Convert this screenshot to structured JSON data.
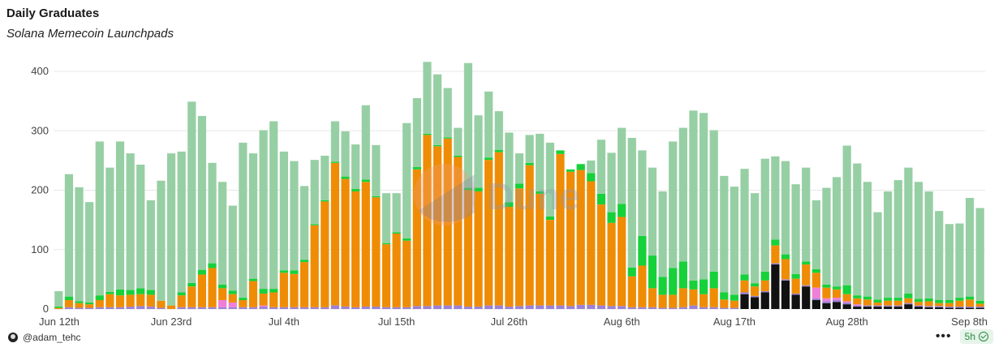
{
  "header": {
    "title": "Daily Graduates",
    "subtitle": "Solana Memecoin Launchpads"
  },
  "footer": {
    "author": "@adam_tehc",
    "more": "•••",
    "refresh": "5h"
  },
  "watermark": "Dune",
  "colors": {
    "total": "#97cfa4",
    "pump": "#ef8c05",
    "moonshot": "#16d13a",
    "purple": "#9b82d6",
    "pink": "#ef7fd7",
    "black": "#111111",
    "grid": "#e8e8e8"
  },
  "chart_data": {
    "type": "bar",
    "title": "Daily Graduates",
    "subtitle": "Solana Memecoin Launchpads",
    "ylim": [
      0,
      420
    ],
    "yticks": [
      0,
      100,
      200,
      300,
      400
    ],
    "xticks": [
      {
        "index": 0,
        "label": "Jun 12th"
      },
      {
        "index": 11,
        "label": "Jun 23rd"
      },
      {
        "index": 22,
        "label": "Jul 4th"
      },
      {
        "index": 33,
        "label": "Jul 15th"
      },
      {
        "index": 44,
        "label": "Jul 26th"
      },
      {
        "index": 55,
        "label": "Aug 6th"
      },
      {
        "index": 66,
        "label": "Aug 17th"
      },
      {
        "index": 77,
        "label": "Aug 28th"
      },
      {
        "index": 88,
        "label": "Sep 8th"
      }
    ],
    "totals": [
      30,
      227,
      205,
      180,
      282,
      238,
      282,
      262,
      243,
      183,
      216,
      262,
      265,
      349,
      325,
      246,
      214,
      174,
      280,
      262,
      301,
      316,
      265,
      249,
      207,
      251,
      258,
      316,
      299,
      277,
      343,
      276,
      195,
      195,
      313,
      355,
      416,
      395,
      372,
      305,
      414,
      326,
      366,
      333,
      297,
      262,
      293,
      295,
      280,
      249,
      219,
      215,
      250,
      285,
      263,
      305,
      288,
      267,
      238,
      198,
      282,
      305,
      334,
      330,
      301,
      224,
      206,
      236,
      195,
      253,
      257,
      249,
      210,
      238,
      183,
      204,
      222,
      275,
      245,
      214,
      163,
      198,
      217,
      238,
      214,
      198,
      165,
      143,
      144,
      187,
      170
    ],
    "pump": [
      2,
      12,
      8,
      6,
      12,
      22,
      20,
      20,
      20,
      20,
      12,
      6,
      20,
      35,
      55,
      66,
      20,
      14,
      12,
      44,
      20,
      25,
      58,
      56,
      76,
      138,
      178,
      240,
      215,
      195,
      210,
      184,
      106,
      124,
      112,
      230,
      288,
      268,
      281,
      250,
      196,
      194,
      245,
      258,
      168,
      198,
      236,
      188,
      144,
      255,
      226,
      227,
      208,
      170,
      140,
      150,
      52,
      70,
      32,
      22,
      22,
      32,
      27,
      22,
      32,
      14,
      12,
      20,
      16,
      18,
      30,
      34,
      25,
      35,
      25,
      18,
      14,
      12,
      10,
      10,
      5,
      8,
      8,
      8,
      6,
      8,
      5,
      6,
      10,
      12,
      5
    ],
    "moonshot": [
      2,
      6,
      3,
      3,
      8,
      4,
      10,
      8,
      10,
      8,
      0,
      0,
      5,
      6,
      8,
      8,
      6,
      6,
      4,
      4,
      8,
      6,
      4,
      6,
      4,
      2,
      2,
      2,
      4,
      4,
      4,
      2,
      2,
      2,
      4,
      4,
      2,
      2,
      2,
      2,
      4,
      6,
      4,
      4,
      8,
      8,
      4,
      4,
      6,
      6,
      4,
      10,
      14,
      18,
      18,
      22,
      15,
      50,
      55,
      30,
      45,
      45,
      15,
      25,
      28,
      12,
      10,
      10,
      5,
      15,
      10,
      8,
      8,
      5,
      6,
      5,
      5,
      15,
      5,
      5,
      5,
      5,
      5,
      8,
      5,
      5,
      5,
      5,
      5,
      5,
      5
    ],
    "purple": [
      0,
      3,
      2,
      2,
      3,
      3,
      3,
      4,
      5,
      4,
      2,
      0,
      3,
      3,
      3,
      3,
      3,
      3,
      3,
      3,
      4,
      3,
      3,
      3,
      3,
      3,
      3,
      6,
      4,
      3,
      4,
      4,
      3,
      3,
      3,
      5,
      5,
      6,
      6,
      6,
      4,
      4,
      6,
      6,
      4,
      5,
      6,
      6,
      6,
      6,
      5,
      7,
      7,
      6,
      5,
      5,
      3,
      3,
      3,
      2,
      2,
      3,
      6,
      3,
      3,
      2,
      2,
      3,
      2,
      2,
      2,
      2,
      2,
      2,
      3,
      3,
      3,
      3,
      2,
      2,
      2,
      2,
      2,
      2,
      2,
      2,
      2,
      2,
      2,
      2,
      2
    ],
    "pink": [
      0,
      0,
      0,
      0,
      0,
      0,
      0,
      0,
      0,
      0,
      0,
      0,
      0,
      0,
      0,
      0,
      12,
      8,
      0,
      0,
      2,
      0,
      0,
      0,
      0,
      0,
      0,
      0,
      0,
      0,
      0,
      0,
      0,
      0,
      0,
      0,
      0,
      0,
      0,
      0,
      0,
      0,
      0,
      0,
      0,
      0,
      0,
      0,
      0,
      0,
      0,
      0,
      0,
      0,
      0,
      0,
      0,
      0,
      0,
      0,
      0,
      0,
      0,
      0,
      0,
      0,
      0,
      0,
      0,
      0,
      0,
      0,
      0,
      0,
      18,
      5,
      4,
      2,
      2,
      0,
      0,
      0,
      0,
      0,
      0,
      0,
      0,
      0,
      0,
      0,
      0
    ],
    "black": [
      0,
      0,
      0,
      0,
      0,
      0,
      0,
      0,
      0,
      0,
      0,
      0,
      0,
      0,
      0,
      0,
      0,
      0,
      0,
      0,
      0,
      0,
      0,
      0,
      0,
      0,
      0,
      0,
      0,
      0,
      0,
      0,
      0,
      0,
      0,
      0,
      0,
      0,
      0,
      0,
      0,
      0,
      0,
      0,
      0,
      0,
      0,
      0,
      0,
      0,
      0,
      0,
      0,
      0,
      0,
      0,
      0,
      0,
      0,
      0,
      0,
      0,
      0,
      0,
      0,
      0,
      0,
      25,
      20,
      28,
      75,
      48,
      24,
      38,
      15,
      10,
      12,
      8,
      4,
      4,
      4,
      4,
      4,
      8,
      4,
      3,
      3,
      2,
      2,
      2,
      2
    ]
  }
}
